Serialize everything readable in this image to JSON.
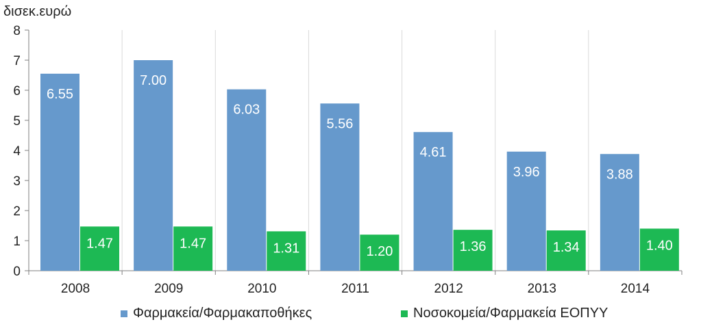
{
  "chart_data": {
    "type": "bar",
    "ylabel": "δισεκ.ευρώ",
    "categories": [
      "2008",
      "2009",
      "2010",
      "2011",
      "2012",
      "2013",
      "2014"
    ],
    "series": [
      {
        "name": "Φαρμακεία/Φαρμακαποθήκες",
        "color": "#6699cc",
        "values": [
          6.55,
          7.0,
          6.03,
          5.56,
          4.61,
          3.96,
          3.88
        ],
        "labels": [
          "6.55",
          "7.00",
          "6.03",
          "5.56",
          "4.61",
          "3.96",
          "3.88"
        ]
      },
      {
        "name": "Νοσοκομεία/Φαρμακεία ΕΟΠΥΥ",
        "color": "#1db954",
        "values": [
          1.47,
          1.47,
          1.31,
          1.2,
          1.36,
          1.34,
          1.4
        ],
        "labels": [
          "1.47",
          "1.47",
          "1.31",
          "1.20",
          "1.36",
          "1.34",
          "1.40"
        ]
      }
    ],
    "ylim": [
      0,
      8
    ],
    "yticks": [
      "0",
      "1",
      "2",
      "3",
      "4",
      "5",
      "6",
      "7",
      "8"
    ],
    "grid": "vertical separators",
    "legend_position": "bottom"
  }
}
